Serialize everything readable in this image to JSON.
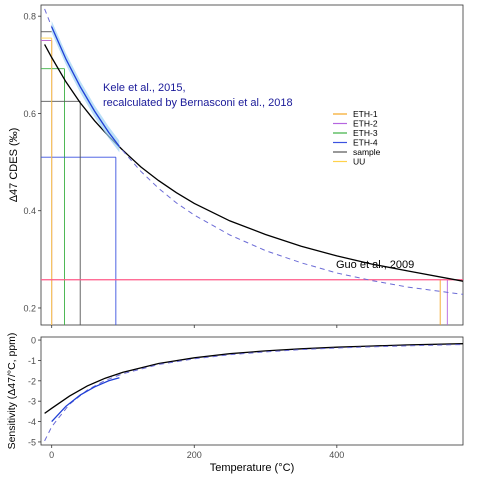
{
  "chart_data": [
    {
      "type": "line",
      "ylabel": "Δ47 CDES (‰)",
      "xlim": [
        -15,
        577
      ],
      "ylim": [
        0.165,
        0.823
      ],
      "x_ticks": [
        0,
        200,
        400
      ],
      "y_ticks": [
        0.2,
        0.4,
        0.6,
        0.8
      ],
      "y_tick_labels": [
        "0.2",
        "0.4",
        "0.6",
        "0.8"
      ],
      "grid": false,
      "annotations": [
        {
          "text": "Kele et al., 2015,",
          "color": "#1a1a99"
        },
        {
          "text": "recalculated by Bernasconi et al., 2018",
          "color": "#1a1a99"
        },
        {
          "text": "Guo et al., 2009",
          "color": "#000000"
        }
      ],
      "legend": {
        "placement": "right",
        "entries": [
          {
            "name": "ETH-1",
            "color": "#f5a623"
          },
          {
            "name": "ETH-2",
            "color": "#b565e0"
          },
          {
            "name": "ETH-3",
            "color": "#3cb043"
          },
          {
            "name": "ETH-4",
            "color": "#3b52e0"
          },
          {
            "name": "sample",
            "color": "#555555"
          },
          {
            "name": "UU",
            "color": "#ffd24a"
          }
        ]
      },
      "series": [
        {
          "style": "black-solid",
          "color": "#000000",
          "x": [
            -10,
            0,
            20,
            40,
            60,
            80,
            100,
            125,
            150,
            175,
            200,
            250,
            300,
            350,
            400,
            450,
            500,
            577
          ],
          "y": [
            0.742,
            0.715,
            0.665,
            0.622,
            0.585,
            0.553,
            0.524,
            0.49,
            0.462,
            0.437,
            0.415,
            0.379,
            0.351,
            0.327,
            0.307,
            0.29,
            0.276,
            0.255
          ]
        },
        {
          "style": "blue-dashed",
          "color": "#6b6bd6",
          "x": [
            -10,
            0,
            20,
            40,
            60,
            80,
            100,
            125,
            150,
            175,
            200,
            250,
            300,
            350,
            400,
            450,
            500,
            577
          ],
          "y": [
            0.815,
            0.778,
            0.712,
            0.655,
            0.605,
            0.561,
            0.523,
            0.481,
            0.446,
            0.416,
            0.391,
            0.35,
            0.318,
            0.293,
            0.272,
            0.256,
            0.243,
            0.228
          ]
        },
        {
          "style": "blue-solid-band",
          "color": "#1f3fd6",
          "x": [
            0,
            20,
            40,
            60,
            80,
            95
          ],
          "y": [
            0.778,
            0.712,
            0.655,
            0.605,
            0.561,
            0.532
          ]
        }
      ],
      "reference_lines": [
        {
          "name": "ETH-1",
          "color": "#f5a623",
          "x": 0,
          "x_high": 545,
          "y": 0.75,
          "y_high": 0.258
        },
        {
          "name": "ETH-2",
          "color": "#b565e0",
          "x": 0,
          "x_high": 555,
          "y": 0.75,
          "y_high": 0.258
        },
        {
          "name": "ETH-3",
          "color": "#3cb043",
          "x": 18,
          "y": 0.692
        },
        {
          "name": "ETH-4",
          "color": "#3b52e0",
          "x": 90,
          "y": 0.51
        },
        {
          "name": "sample",
          "color": "#555555",
          "x": 40,
          "y": 0.625
        },
        {
          "name": "UU",
          "color": "#ffd24a",
          "x": 0,
          "y": 0.755
        },
        {
          "name": "high-T",
          "color": "#ff5a88",
          "y": 0.258
        }
      ]
    },
    {
      "type": "line",
      "xlabel": "Temperature (°C)",
      "ylabel": "Sensitivity (Δ47/°C, ppm)",
      "xlim": [
        -15,
        577
      ],
      "ylim": [
        -5.15,
        0.15
      ],
      "x_ticks": [
        0,
        200,
        400
      ],
      "x_tick_labels": [
        "0",
        "200",
        "400"
      ],
      "y_ticks": [
        0,
        -1,
        -2,
        -3,
        -4,
        -5
      ],
      "y_tick_labels": [
        "0",
        "-1",
        "-2",
        "-3",
        "-4",
        "-5"
      ],
      "grid": false,
      "series": [
        {
          "style": "black-solid",
          "color": "#000000",
          "x": [
            -10,
            0,
            25,
            50,
            75,
            100,
            150,
            200,
            250,
            300,
            350,
            400,
            450,
            500,
            577
          ],
          "y": [
            -3.6,
            -3.35,
            -2.75,
            -2.25,
            -1.87,
            -1.58,
            -1.15,
            -0.87,
            -0.67,
            -0.53,
            -0.43,
            -0.35,
            -0.29,
            -0.24,
            -0.18
          ]
        },
        {
          "style": "blue-dashed",
          "color": "#6b6bd6",
          "x": [
            -10,
            0,
            25,
            50,
            75,
            100,
            150,
            200,
            250,
            300,
            350,
            400,
            450,
            500,
            577
          ],
          "y": [
            -4.95,
            -4.25,
            -3.15,
            -2.45,
            -1.98,
            -1.65,
            -1.2,
            -0.92,
            -0.72,
            -0.58,
            -0.47,
            -0.39,
            -0.33,
            -0.28,
            -0.22
          ]
        },
        {
          "style": "blue-solid",
          "color": "#1f3fd6",
          "x": [
            0,
            20,
            40,
            60,
            80,
            95
          ],
          "y": [
            -4.0,
            -3.25,
            -2.7,
            -2.3,
            -2.0,
            -1.85
          ]
        }
      ]
    }
  ]
}
